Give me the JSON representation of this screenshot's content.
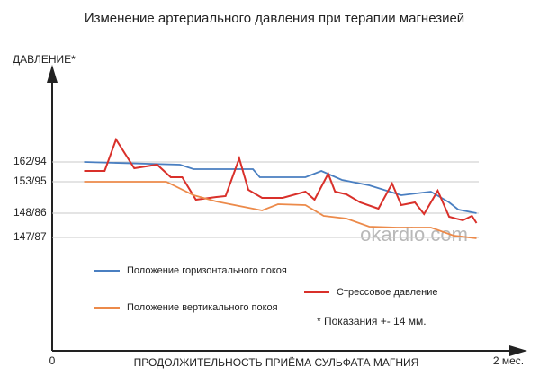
{
  "chart_data": {
    "type": "line",
    "title": "Изменение артериального давления при терапии магнезией",
    "y_label": "ДАВЛЕНИЕ*",
    "x_label": "ПРОДОЛЖИТЕЛЬНОСТЬ ПРИЁМА СУЛЬФАТА МАГНИЯ",
    "annotation": "* Показания +- 14 мм.",
    "watermark": "okardio.com",
    "xlim": [
      0,
      2
    ],
    "xticks": [
      0,
      {
        "value": 2,
        "label": "2 мес."
      }
    ],
    "ylim": [
      0,
      310
    ],
    "yticks": [
      {
        "value": 210,
        "label": "162/94",
        "color": "#3b6fb5"
      },
      {
        "value": 188,
        "label": "153/95",
        "color": "#e8793a"
      },
      {
        "value": 153,
        "label": "148/86",
        "color": "#3b6fb5"
      },
      {
        "value": 126,
        "label": "147/87",
        "color": "#e8793a"
      }
    ],
    "grid": true,
    "series": [
      {
        "name": "Положение горизонтального покоя",
        "color": "#4a7fc1",
        "x": [
          0.14,
          0.56,
          0.62,
          0.88,
          0.91,
          1.11,
          1.18,
          1.27,
          1.39,
          1.53,
          1.66,
          1.74,
          1.78,
          1.86
        ],
        "values": [
          210,
          207,
          202,
          202,
          193,
          193,
          200,
          190,
          184,
          173,
          177,
          165,
          157,
          153
        ]
      },
      {
        "name": "Стрессовое давление",
        "color": "#d9302a",
        "x": [
          0.14,
          0.23,
          0.28,
          0.36,
          0.46,
          0.52,
          0.57,
          0.63,
          0.72,
          0.76,
          0.82,
          0.86,
          0.92,
          1.01,
          1.11,
          1.15,
          1.21,
          1.24,
          1.29,
          1.35,
          1.43,
          1.49,
          1.53,
          1.59,
          1.63,
          1.69,
          1.74,
          1.8,
          1.84,
          1.86
        ],
        "values": [
          200,
          200,
          235,
          203,
          207,
          193,
          193,
          168,
          171,
          172,
          214,
          179,
          170,
          170,
          177,
          168,
          197,
          177,
          174,
          165,
          158,
          186,
          162,
          165,
          152,
          178,
          149,
          145,
          150,
          142
        ]
      },
      {
        "name": "Положение вертикального покоя",
        "color": "#ec8a4a",
        "x": [
          0.14,
          0.5,
          0.62,
          0.72,
          0.92,
          0.99,
          1.11,
          1.19,
          1.29,
          1.39,
          1.51,
          1.66,
          1.76,
          1.86
        ],
        "values": [
          188,
          188,
          173,
          166,
          156,
          163,
          162,
          150,
          147,
          138,
          137,
          137,
          128,
          125
        ]
      }
    ]
  }
}
